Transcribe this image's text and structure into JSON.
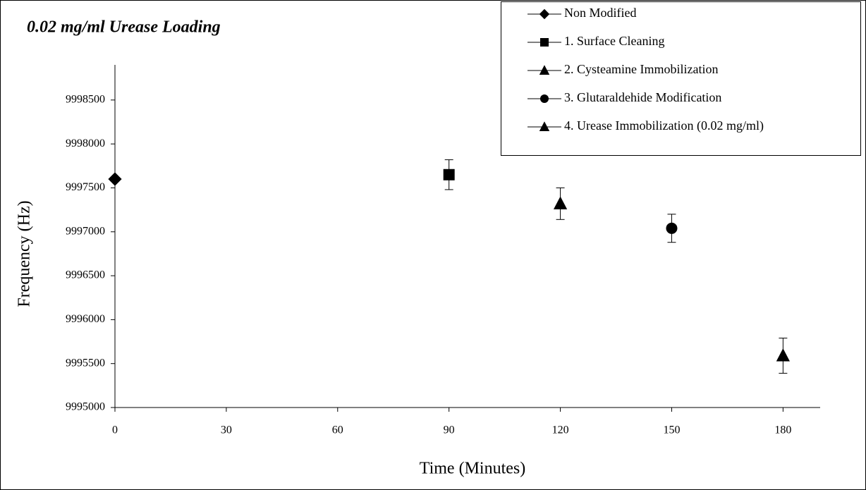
{
  "chart_data": {
    "type": "scatter",
    "title": "0.02 mg/ml Urease Loading",
    "x_label": "Time (Minutes)",
    "y_label": "Frequency (Hz)",
    "xlim": [
      0,
      190
    ],
    "xticks": [
      0,
      30,
      60,
      90,
      120,
      150,
      180
    ],
    "ylim": [
      9995000,
      9998900
    ],
    "yticks": [
      9995000,
      9995500,
      9996000,
      9996500,
      9997000,
      9997500,
      9998000,
      9998500
    ],
    "grid": false,
    "legend": "upper right",
    "series": [
      {
        "name": "Non Modified",
        "color": "#000000",
        "marker": "diamond",
        "x": [
          0
        ],
        "values": [
          9997600
        ],
        "errors": [
          0
        ]
      },
      {
        "name": "1. Surface Cleaning",
        "color": "#000000",
        "marker": "square",
        "x": [
          90
        ],
        "values": [
          9997650
        ],
        "errors": [
          170
        ]
      },
      {
        "name": "2. Cysteamine Immobilization",
        "color": "#000000",
        "marker": "triangle",
        "x": [
          120
        ],
        "values": [
          9997320
        ],
        "errors": [
          180
        ]
      },
      {
        "name": "3. Glutaraldehide Modification",
        "color": "#000000",
        "marker": "circle",
        "x": [
          150
        ],
        "values": [
          9997040
        ],
        "errors": [
          160
        ]
      },
      {
        "name": "4. Urease Immobilization (0.02 mg/ml)",
        "color": "#000000",
        "marker": "triangle",
        "x": [
          180
        ],
        "values": [
          9995590
        ],
        "errors": [
          200
        ]
      }
    ]
  }
}
